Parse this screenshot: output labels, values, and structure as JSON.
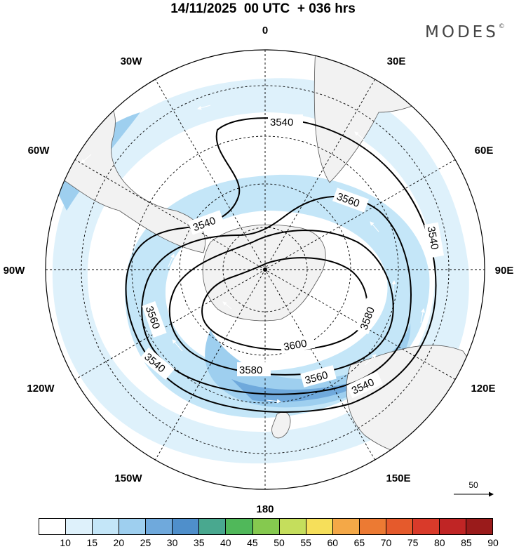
{
  "title": "14/11/2025  00 UTC  + 036 hrs",
  "brand": "MODES",
  "brand_mark": "©",
  "longitude_labels": [
    "0",
    "30E",
    "60E",
    "90E",
    "120E",
    "150E",
    "180",
    "150W",
    "120W",
    "90W",
    "60W",
    "30W"
  ],
  "contours": [
    {
      "value": "3540",
      "labels": [
        "3540",
        "3540",
        "3540",
        "3540",
        "3540"
      ]
    },
    {
      "value": "3560",
      "labels": [
        "3560",
        "3560",
        "3560"
      ]
    },
    {
      "value": "3580",
      "labels": [
        "3580",
        "3580"
      ]
    },
    {
      "value": "3600",
      "labels": [
        "3600"
      ]
    }
  ],
  "reference_vector": "50",
  "legend": {
    "labels": [
      "10",
      "15",
      "20",
      "25",
      "30",
      "35",
      "40",
      "45",
      "50",
      "55",
      "60",
      "65",
      "70",
      "75",
      "80",
      "85",
      "90"
    ],
    "colors": [
      "#ffffff",
      "#def1fb",
      "#c4e6f8",
      "#9ecfef",
      "#6fa9dc",
      "#4f8fcb",
      "#49a88f",
      "#50b85a",
      "#85c94f",
      "#c5de5c",
      "#f6df5a",
      "#f4a847",
      "#ec7a33",
      "#e55a2c",
      "#d93a2a",
      "#c02525",
      "#9a1b1b"
    ]
  }
}
